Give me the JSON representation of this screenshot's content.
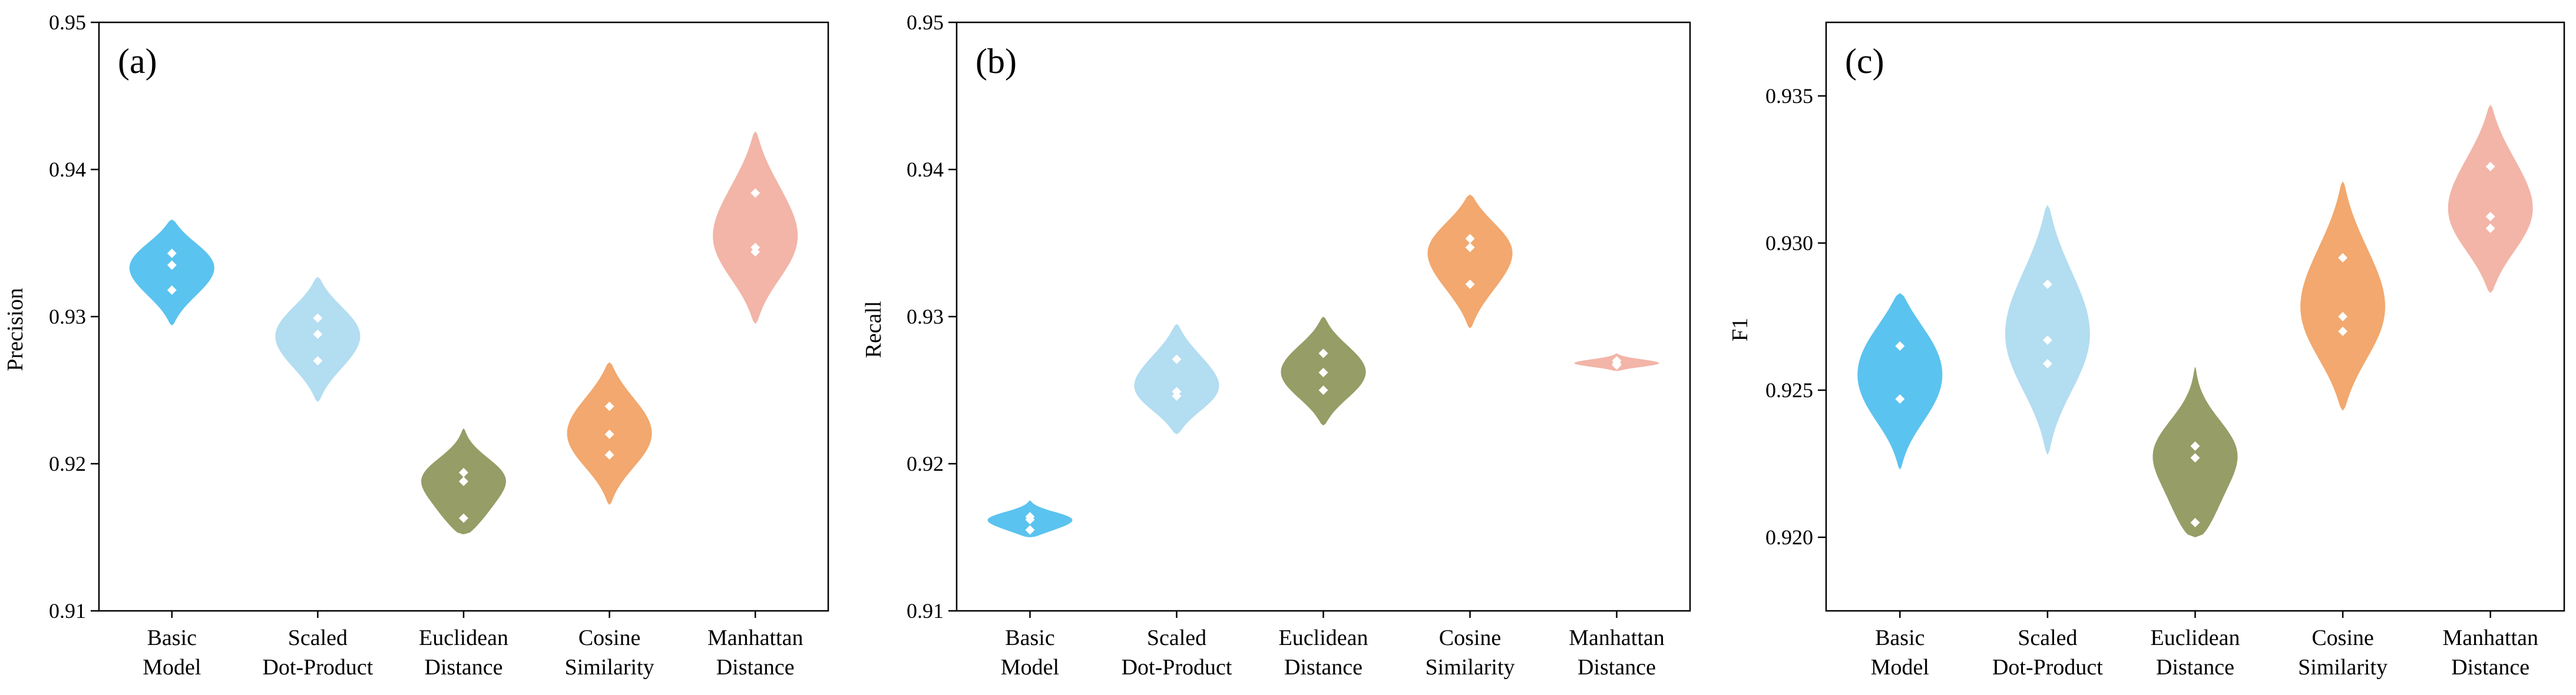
{
  "colors": {
    "Basic Model": "#5bc3ef",
    "Scaled Dot-Product": "#b3ddf1",
    "Euclidean Distance": "#969d66",
    "Cosine Similarity": "#f2a86e",
    "Manhattan Distance": "#f2b5a8",
    "point": "#ffffff"
  },
  "chart_data": [
    {
      "type": "violin",
      "panel_label": "(a)",
      "ylabel": "Precision",
      "xlabel": "",
      "ylim": [
        0.91,
        0.95
      ],
      "yticks": [
        0.91,
        0.92,
        0.93,
        0.94,
        0.95
      ],
      "ytick_labels": [
        "0.91",
        "0.92",
        "0.93",
        "0.94",
        "0.95"
      ],
      "categories": [
        "Basic Model",
        "Scaled Dot-Product",
        "Euclidean Distance",
        "Cosine Similarity",
        "Manhattan Distance"
      ],
      "category_labels": [
        [
          "Basic",
          "Model"
        ],
        [
          "Scaled",
          "Dot-Product"
        ],
        [
          "Euclidean",
          "Distance"
        ],
        [
          "Cosine",
          "Similarity"
        ],
        [
          "Manhattan",
          "Distance"
        ]
      ],
      "series": [
        {
          "name": "Basic Model",
          "values": [
            0.9343,
            0.9335,
            0.9318
          ],
          "range": [
            0.9294,
            0.9366
          ]
        },
        {
          "name": "Scaled Dot-Product",
          "values": [
            0.9299,
            0.9288,
            0.927
          ],
          "range": [
            0.9242,
            0.9327
          ]
        },
        {
          "name": "Euclidean Distance",
          "values": [
            0.9194,
            0.9188,
            0.9163
          ],
          "range": [
            0.9152,
            0.9224
          ]
        },
        {
          "name": "Cosine Similarity",
          "values": [
            0.9239,
            0.922,
            0.9206
          ],
          "range": [
            0.9172,
            0.9269
          ]
        },
        {
          "name": "Manhattan Distance",
          "values": [
            0.9384,
            0.9347,
            0.9344
          ],
          "range": [
            0.9295,
            0.9426
          ]
        }
      ]
    },
    {
      "type": "violin",
      "panel_label": "(b)",
      "ylabel": "Recall",
      "xlabel": "",
      "ylim": [
        0.91,
        0.95
      ],
      "yticks": [
        0.91,
        0.92,
        0.93,
        0.94,
        0.95
      ],
      "ytick_labels": [
        "0.91",
        "0.92",
        "0.93",
        "0.94",
        "0.95"
      ],
      "categories": [
        "Basic Model",
        "Scaled Dot-Product",
        "Euclidean Distance",
        "Cosine Similarity",
        "Manhattan Distance"
      ],
      "category_labels": [
        [
          "Basic",
          "Model"
        ],
        [
          "Scaled",
          "Dot-Product"
        ],
        [
          "Euclidean",
          "Distance"
        ],
        [
          "Cosine",
          "Similarity"
        ],
        [
          "Manhattan",
          "Distance"
        ]
      ],
      "series": [
        {
          "name": "Basic Model",
          "values": [
            0.9164,
            0.9162,
            0.9155
          ],
          "range": [
            0.915,
            0.9175
          ]
        },
        {
          "name": "Scaled Dot-Product",
          "values": [
            0.9271,
            0.9249,
            0.9246
          ],
          "range": [
            0.922,
            0.9295
          ]
        },
        {
          "name": "Euclidean Distance",
          "values": [
            0.9275,
            0.9262,
            0.925
          ],
          "range": [
            0.9226,
            0.93
          ]
        },
        {
          "name": "Cosine Similarity",
          "values": [
            0.9353,
            0.9347,
            0.9322
          ],
          "range": [
            0.9292,
            0.9383
          ]
        },
        {
          "name": "Manhattan Distance",
          "values": [
            0.927,
            0.9268,
            0.9267
          ],
          "range": [
            0.9263,
            0.9275
          ]
        }
      ]
    },
    {
      "type": "violin",
      "panel_label": "(c)",
      "ylabel": "F1",
      "xlabel": "",
      "ylim": [
        0.9175,
        0.9375
      ],
      "yticks": [
        0.92,
        0.925,
        0.93,
        0.935
      ],
      "ytick_labels": [
        "0.920",
        "0.925",
        "0.930",
        "0.935"
      ],
      "categories": [
        "Basic Model",
        "Scaled Dot-Product",
        "Euclidean Distance",
        "Cosine Similarity",
        "Manhattan Distance"
      ],
      "category_labels": [
        [
          "Basic",
          "Model"
        ],
        [
          "Scaled",
          "Dot-Product"
        ],
        [
          "Euclidean",
          "Distance"
        ],
        [
          "Cosine",
          "Similarity"
        ],
        [
          "Manhattan",
          "Distance"
        ]
      ],
      "series": [
        {
          "name": "Basic Model",
          "values": [
            0.9265,
            0.9247
          ],
          "range": [
            0.9223,
            0.9283
          ]
        },
        {
          "name": "Scaled Dot-Product",
          "values": [
            0.9286,
            0.9267,
            0.9259
          ],
          "range": [
            0.9228,
            0.9313
          ]
        },
        {
          "name": "Euclidean Distance",
          "values": [
            0.9231,
            0.9227,
            0.9205
          ],
          "range": [
            0.92,
            0.9258
          ]
        },
        {
          "name": "Cosine Similarity",
          "values": [
            0.9295,
            0.9275,
            0.927
          ],
          "range": [
            0.9243,
            0.9321
          ]
        },
        {
          "name": "Manhattan Distance",
          "values": [
            0.9326,
            0.9309,
            0.9305
          ],
          "range": [
            0.9283,
            0.9347
          ]
        }
      ]
    }
  ]
}
